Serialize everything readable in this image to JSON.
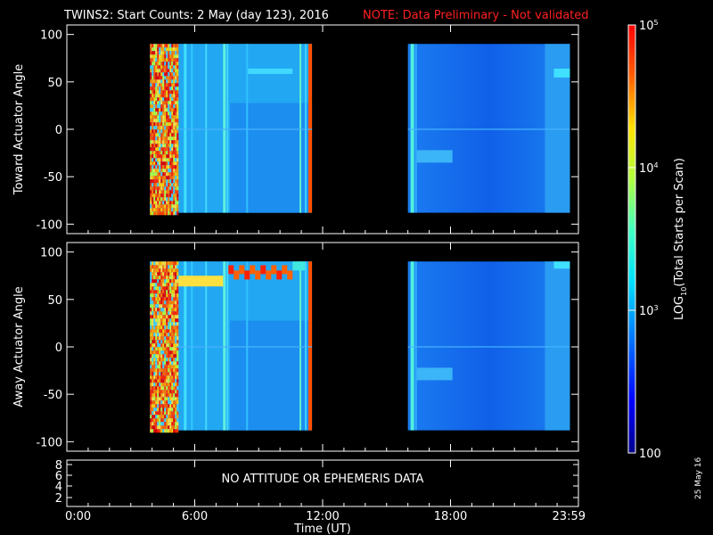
{
  "header": {
    "title": "TWINS2: Start Counts:  2 May (day 123), 2016",
    "note": "NOTE: Data Preliminary - Not validated"
  },
  "chart_data": [
    {
      "type": "heatmap",
      "panel": "toward",
      "ylabel": "Toward Actuator Angle",
      "ylim": [
        -110,
        110
      ],
      "yticks": [
        "100",
        "50",
        "0",
        "-50",
        "-100"
      ],
      "xlim_hours": [
        0,
        24
      ],
      "data_angle_range": [
        -88,
        90
      ],
      "blocks": [
        {
          "start_hour": 3.9,
          "end_hour": 11.5
        },
        {
          "start_hour": 16.0,
          "end_hour": 23.6
        }
      ]
    },
    {
      "type": "heatmap",
      "panel": "away",
      "ylabel": "Away Actuator Angle",
      "ylim": [
        -110,
        110
      ],
      "yticks": [
        "100",
        "50",
        "0",
        "-50",
        "-100"
      ],
      "xlim_hours": [
        0,
        24
      ],
      "data_angle_range": [
        -88,
        90
      ],
      "blocks": [
        {
          "start_hour": 3.9,
          "end_hour": 11.5
        },
        {
          "start_hour": 16.0,
          "end_hour": 23.6
        }
      ]
    },
    {
      "type": "line",
      "panel": "attitude",
      "yticks": [
        "8",
        "6",
        "4",
        "2"
      ],
      "message": "NO ATTITUDE OR EPHEMERIS DATA"
    }
  ],
  "xaxis": {
    "label": "Time (UT)",
    "ticks": [
      {
        "label": "0:00",
        "hour": 0
      },
      {
        "label": "6:00",
        "hour": 6
      },
      {
        "label": "12:00",
        "hour": 12
      },
      {
        "label": "18:00",
        "hour": 18
      },
      {
        "label": "23:59",
        "hour": 24
      }
    ]
  },
  "colorbar": {
    "label_pre": "LOG",
    "label_sub": "10",
    "label_post": "(Total Starts per Scan)",
    "scale": "log",
    "range": [
      100,
      100000
    ],
    "ticks": [
      {
        "value": 100,
        "label": "100"
      },
      {
        "value": 1000,
        "label": "10",
        "sup": "3"
      },
      {
        "value": 10000,
        "label": "10",
        "sup": "4"
      },
      {
        "value": 100000,
        "label": "10",
        "sup": "5"
      }
    ]
  },
  "footer": {
    "date": "25 May 16"
  },
  "colors": {
    "background": "#000000",
    "note": "#ff2020",
    "axes": "#ffffff"
  }
}
